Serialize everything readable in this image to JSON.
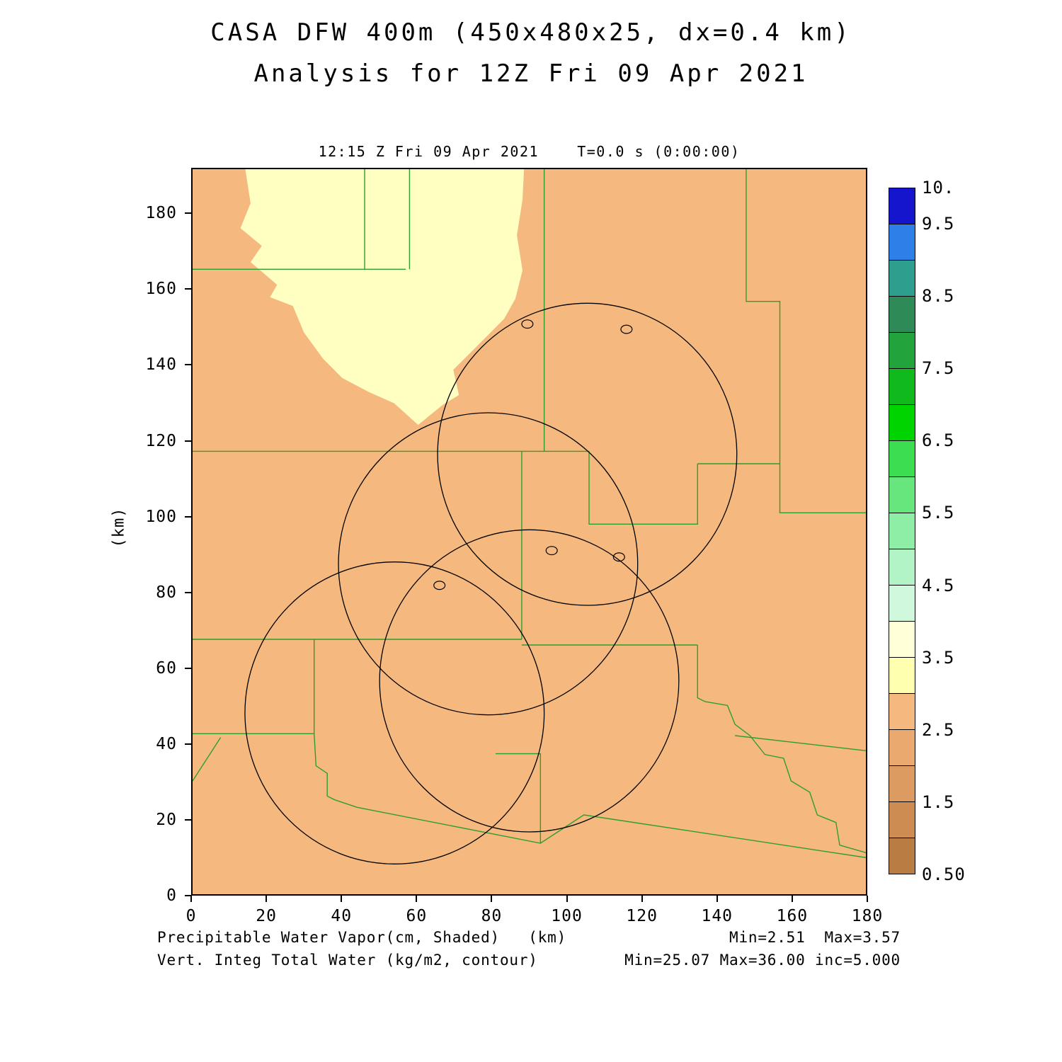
{
  "title": {
    "line1": "CASA DFW 400m (450x480x25, dx=0.4 km)",
    "line2": "Analysis for 12Z Fri 09 Apr 2021"
  },
  "header": {
    "text": "12:15 Z Fri 09 Apr 2021    T=0.0 s (0:00:00)"
  },
  "captions": {
    "left_line1": "Precipitable Water Vapor(cm, Shaded)   (km)",
    "left_line2": "Vert. Integ Total Water (kg/m2, contour)",
    "right_line1": "Min=2.51  Max=3.57",
    "right_line2": "Min=25.07 Max=36.00 inc=5.000"
  },
  "chart_data": {
    "type": "heatmap",
    "title": "CASA DFW 400m (450x480x25, dx=0.4 km) — Analysis for 12Z Fri 09 Apr 2021",
    "valid_time": "12:15 Z Fri 09 Apr 2021",
    "forecast_time": "T=0.0 s (0:00:00)",
    "shaded_field": {
      "name": "Precipitable Water Vapor",
      "units": "cm",
      "min": 2.51,
      "max": 3.57
    },
    "contour_field": {
      "name": "Vert. Integ Total Water",
      "units": "kg/m2",
      "min": 25.07,
      "max": 36.0,
      "inc": 5.0
    },
    "xlabel": "(km)",
    "ylabel": "(km)",
    "xlim": [
      0,
      180
    ],
    "ylim": [
      0,
      192
    ],
    "x_ticks": [
      0,
      20,
      40,
      60,
      80,
      100,
      120,
      140,
      160,
      180
    ],
    "y_ticks": [
      180,
      160,
      140,
      120,
      100,
      80,
      60,
      40,
      20,
      0
    ],
    "grid": false,
    "legend_position": "right-colorbar",
    "colorbar": {
      "labels": [
        "10.",
        "9.5",
        "8.5",
        "7.5",
        "6.5",
        "5.5",
        "4.5",
        "3.5",
        "2.5",
        "1.5",
        "0.50"
      ],
      "label_pos": [
        0,
        1,
        3,
        5,
        7,
        9,
        11,
        13,
        15,
        17,
        19
      ],
      "value_range": [
        0.5,
        10.0
      ],
      "segment_step": 0.5,
      "segments": [
        "#1515cd",
        "#2f7fe8",
        "#2e9e8e",
        "#2e8b57",
        "#23a33b",
        "#11ba1c",
        "#00d400",
        "#3ddd52",
        "#66e67c",
        "#8feea5",
        "#b2f4c6",
        "#cff8dd",
        "#ffffd8",
        "#ffffb0",
        "#f5b87e",
        "#eaaa6f",
        "#dc9c61",
        "#cc8c52",
        "#b97c43"
      ]
    },
    "colors": {
      "background_fill": "#f5b87e",
      "region_fill": "#ffffc2",
      "county_line": "#2f9e2f",
      "contour_line": "#000000",
      "axis": "#000000"
    },
    "shaded_regions": [
      {
        "value_range": [
          3.0,
          3.5
        ],
        "polygon": [
          [
            14.1,
            192
          ],
          [
            15.5,
            183
          ],
          [
            12.8,
            176.4
          ],
          [
            18.5,
            171.7
          ],
          [
            15.5,
            167.4
          ],
          [
            22.6,
            161.4
          ],
          [
            20.7,
            158.1
          ],
          [
            26.8,
            155.8
          ],
          [
            29.8,
            148.7
          ],
          [
            34.9,
            141.8
          ],
          [
            40,
            136.7
          ],
          [
            47.1,
            133
          ],
          [
            53.9,
            130
          ],
          [
            60.3,
            124.3
          ],
          [
            66.9,
            129.6
          ],
          [
            71.2,
            132.2
          ],
          [
            69.7,
            138.9
          ],
          [
            75.8,
            144.9
          ],
          [
            79.2,
            148.3
          ],
          [
            83.3,
            152.4
          ],
          [
            86.3,
            157.7
          ],
          [
            88.2,
            165.2
          ],
          [
            86.7,
            174.5
          ],
          [
            88.2,
            183.9
          ],
          [
            88.6,
            192
          ]
        ]
      }
    ],
    "radar_circles": [
      {
        "cx": 105.5,
        "cy": 116.5,
        "r": 40
      },
      {
        "cx": 79.0,
        "cy": 87.5,
        "r": 40
      },
      {
        "cx": 54.0,
        "cy": 48.0,
        "r": 40
      },
      {
        "cx": 90.0,
        "cy": 56.5,
        "r": 40
      }
    ],
    "contour_ovals": [
      [
        89.5,
        151
      ],
      [
        116,
        149.6
      ],
      [
        96,
        91
      ],
      [
        114,
        89.3
      ],
      [
        66,
        81.8
      ]
    ],
    "county_lines": [
      [
        [
          0,
          165.5
        ],
        [
          57,
          165.5
        ]
      ],
      [
        [
          58,
          192
        ],
        [
          58,
          165.5
        ]
      ],
      [
        [
          46,
          192
        ],
        [
          46,
          165.5
        ]
      ],
      [
        [
          0,
          117.3
        ],
        [
          106,
          117.3
        ]
      ],
      [
        [
          94,
          192
        ],
        [
          94,
          117.3
        ]
      ],
      [
        [
          148,
          192
        ],
        [
          148,
          157
        ],
        [
          157,
          157
        ],
        [
          157,
          101
        ],
        [
          180,
          101
        ]
      ],
      [
        [
          135,
          114
        ],
        [
          157,
          114
        ]
      ],
      [
        [
          135,
          114
        ],
        [
          135,
          98
        ],
        [
          106,
          98
        ],
        [
          106,
          117.3
        ]
      ],
      [
        [
          0,
          67.5
        ],
        [
          88,
          67.5
        ]
      ],
      [
        [
          88,
          117.3
        ],
        [
          88,
          67.5
        ]
      ],
      [
        [
          88,
          66
        ],
        [
          135,
          66
        ]
      ],
      [
        [
          135,
          66
        ],
        [
          135,
          52
        ],
        [
          137,
          51
        ],
        [
          143,
          50
        ],
        [
          145,
          45
        ],
        [
          149,
          42
        ],
        [
          153,
          37
        ],
        [
          158,
          36
        ],
        [
          160,
          30
        ],
        [
          165,
          27
        ],
        [
          167,
          21
        ],
        [
          172,
          19
        ],
        [
          173,
          13
        ],
        [
          180,
          11
        ]
      ],
      [
        [
          145,
          42
        ],
        [
          180,
          38
        ]
      ],
      [
        [
          32.5,
          67.5
        ],
        [
          32.5,
          42.5
        ]
      ],
      [
        [
          0,
          42.5
        ],
        [
          32.5,
          42.5
        ],
        [
          33,
          34
        ],
        [
          36,
          32
        ],
        [
          36,
          26
        ],
        [
          38,
          25
        ],
        [
          44,
          23
        ],
        [
          93,
          13.5
        ],
        [
          104.6,
          21
        ],
        [
          180,
          9.7
        ]
      ],
      [
        [
          0,
          30
        ],
        [
          7.5,
          41.5
        ]
      ],
      [
        [
          81,
          37.2
        ],
        [
          93,
          37.2
        ],
        [
          93,
          13.5
        ]
      ]
    ]
  }
}
